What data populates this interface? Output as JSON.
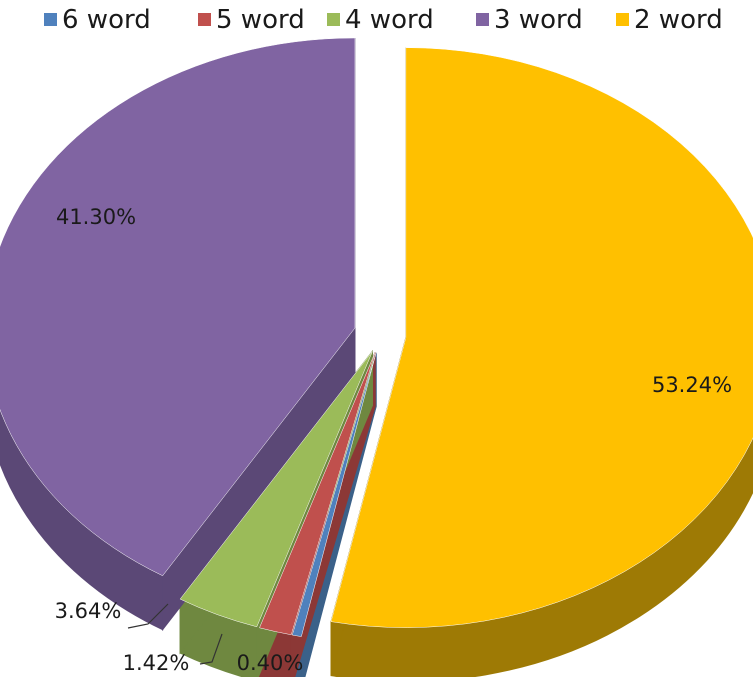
{
  "chart_data": {
    "type": "pie",
    "title": "",
    "legend_position": "top",
    "categories": [
      "6  word",
      "5 word",
      "4 word",
      "3 word",
      "2 word"
    ],
    "values": [
      0.4,
      1.42,
      3.64,
      41.3,
      53.24
    ],
    "labels": [
      "0.40%",
      "1.42%",
      "3.64%",
      "41.30%",
      "53.24%"
    ],
    "colors": [
      "#4f81bd",
      "#c0504d",
      "#9bbb59",
      "#8064a2",
      "#ffc000"
    ],
    "side_colors": [
      "#3b6189",
      "#8c3836",
      "#6f8840",
      "#5b4876",
      "#9e7a05"
    ],
    "exploded": true,
    "three_d": true
  }
}
